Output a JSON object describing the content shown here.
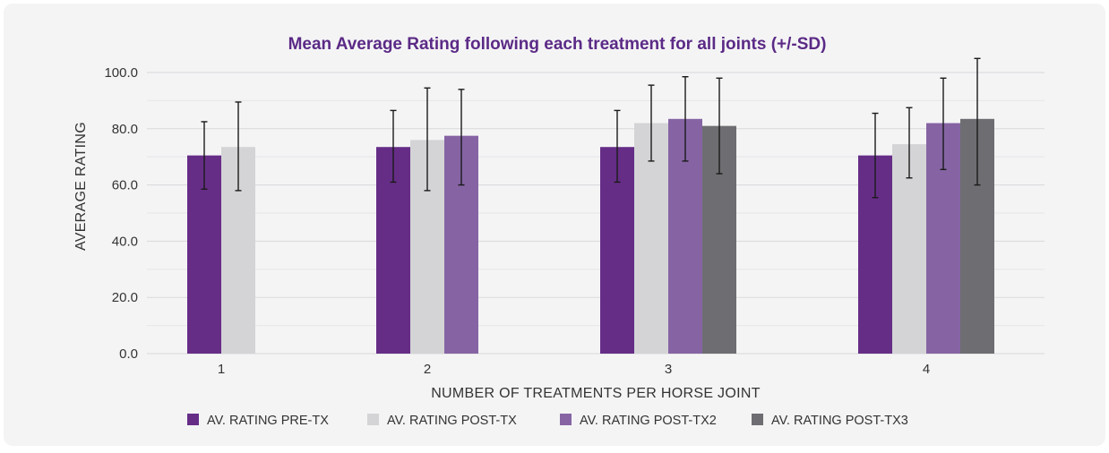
{
  "chart_data": {
    "type": "bar",
    "title": "Mean Average Rating following each treatment for all joints (+/-SD)",
    "xlabel": "NUMBER OF TREATMENTS PER HORSE JOINT",
    "ylabel": "AVERAGE RATING",
    "ylim": [
      0,
      100
    ],
    "yticks": [
      "0.0",
      "20.0",
      "40.0",
      "60.0",
      "80.0",
      "100.0"
    ],
    "ytick_values": [
      0,
      20,
      40,
      60,
      80,
      100
    ],
    "categories": [
      "1",
      "2",
      "3",
      "4"
    ],
    "series": [
      {
        "name": "AV. RATING PRE-TX",
        "color": "#662d87",
        "values": [
          70.5,
          73.5,
          73.5,
          70.5
        ],
        "error_low": [
          58.5,
          61,
          61,
          55.5
        ],
        "error_high": [
          82.5,
          86.5,
          86.5,
          85.5
        ]
      },
      {
        "name": "AV. RATING POST-TX",
        "color": "#d4d4d6",
        "values": [
          73.5,
          76,
          82,
          74.5
        ],
        "error_low": [
          58,
          58,
          68.5,
          62.5
        ],
        "error_high": [
          89.5,
          94.5,
          95.5,
          87.5
        ]
      },
      {
        "name": "AV. RATING POST-TX2",
        "color": "#8664a4",
        "values": [
          null,
          77.5,
          83.5,
          82
        ],
        "error_low": [
          null,
          60,
          68.5,
          65.5
        ],
        "error_high": [
          null,
          94,
          98.5,
          98
        ]
      },
      {
        "name": "AV. RATING POST-TX3",
        "color": "#6e6e72",
        "values": [
          null,
          null,
          81,
          83.5
        ],
        "error_low": [
          null,
          null,
          64,
          60
        ],
        "error_high": [
          null,
          null,
          98,
          105
        ]
      }
    ],
    "grid": true,
    "legend_position": "bottom"
  }
}
